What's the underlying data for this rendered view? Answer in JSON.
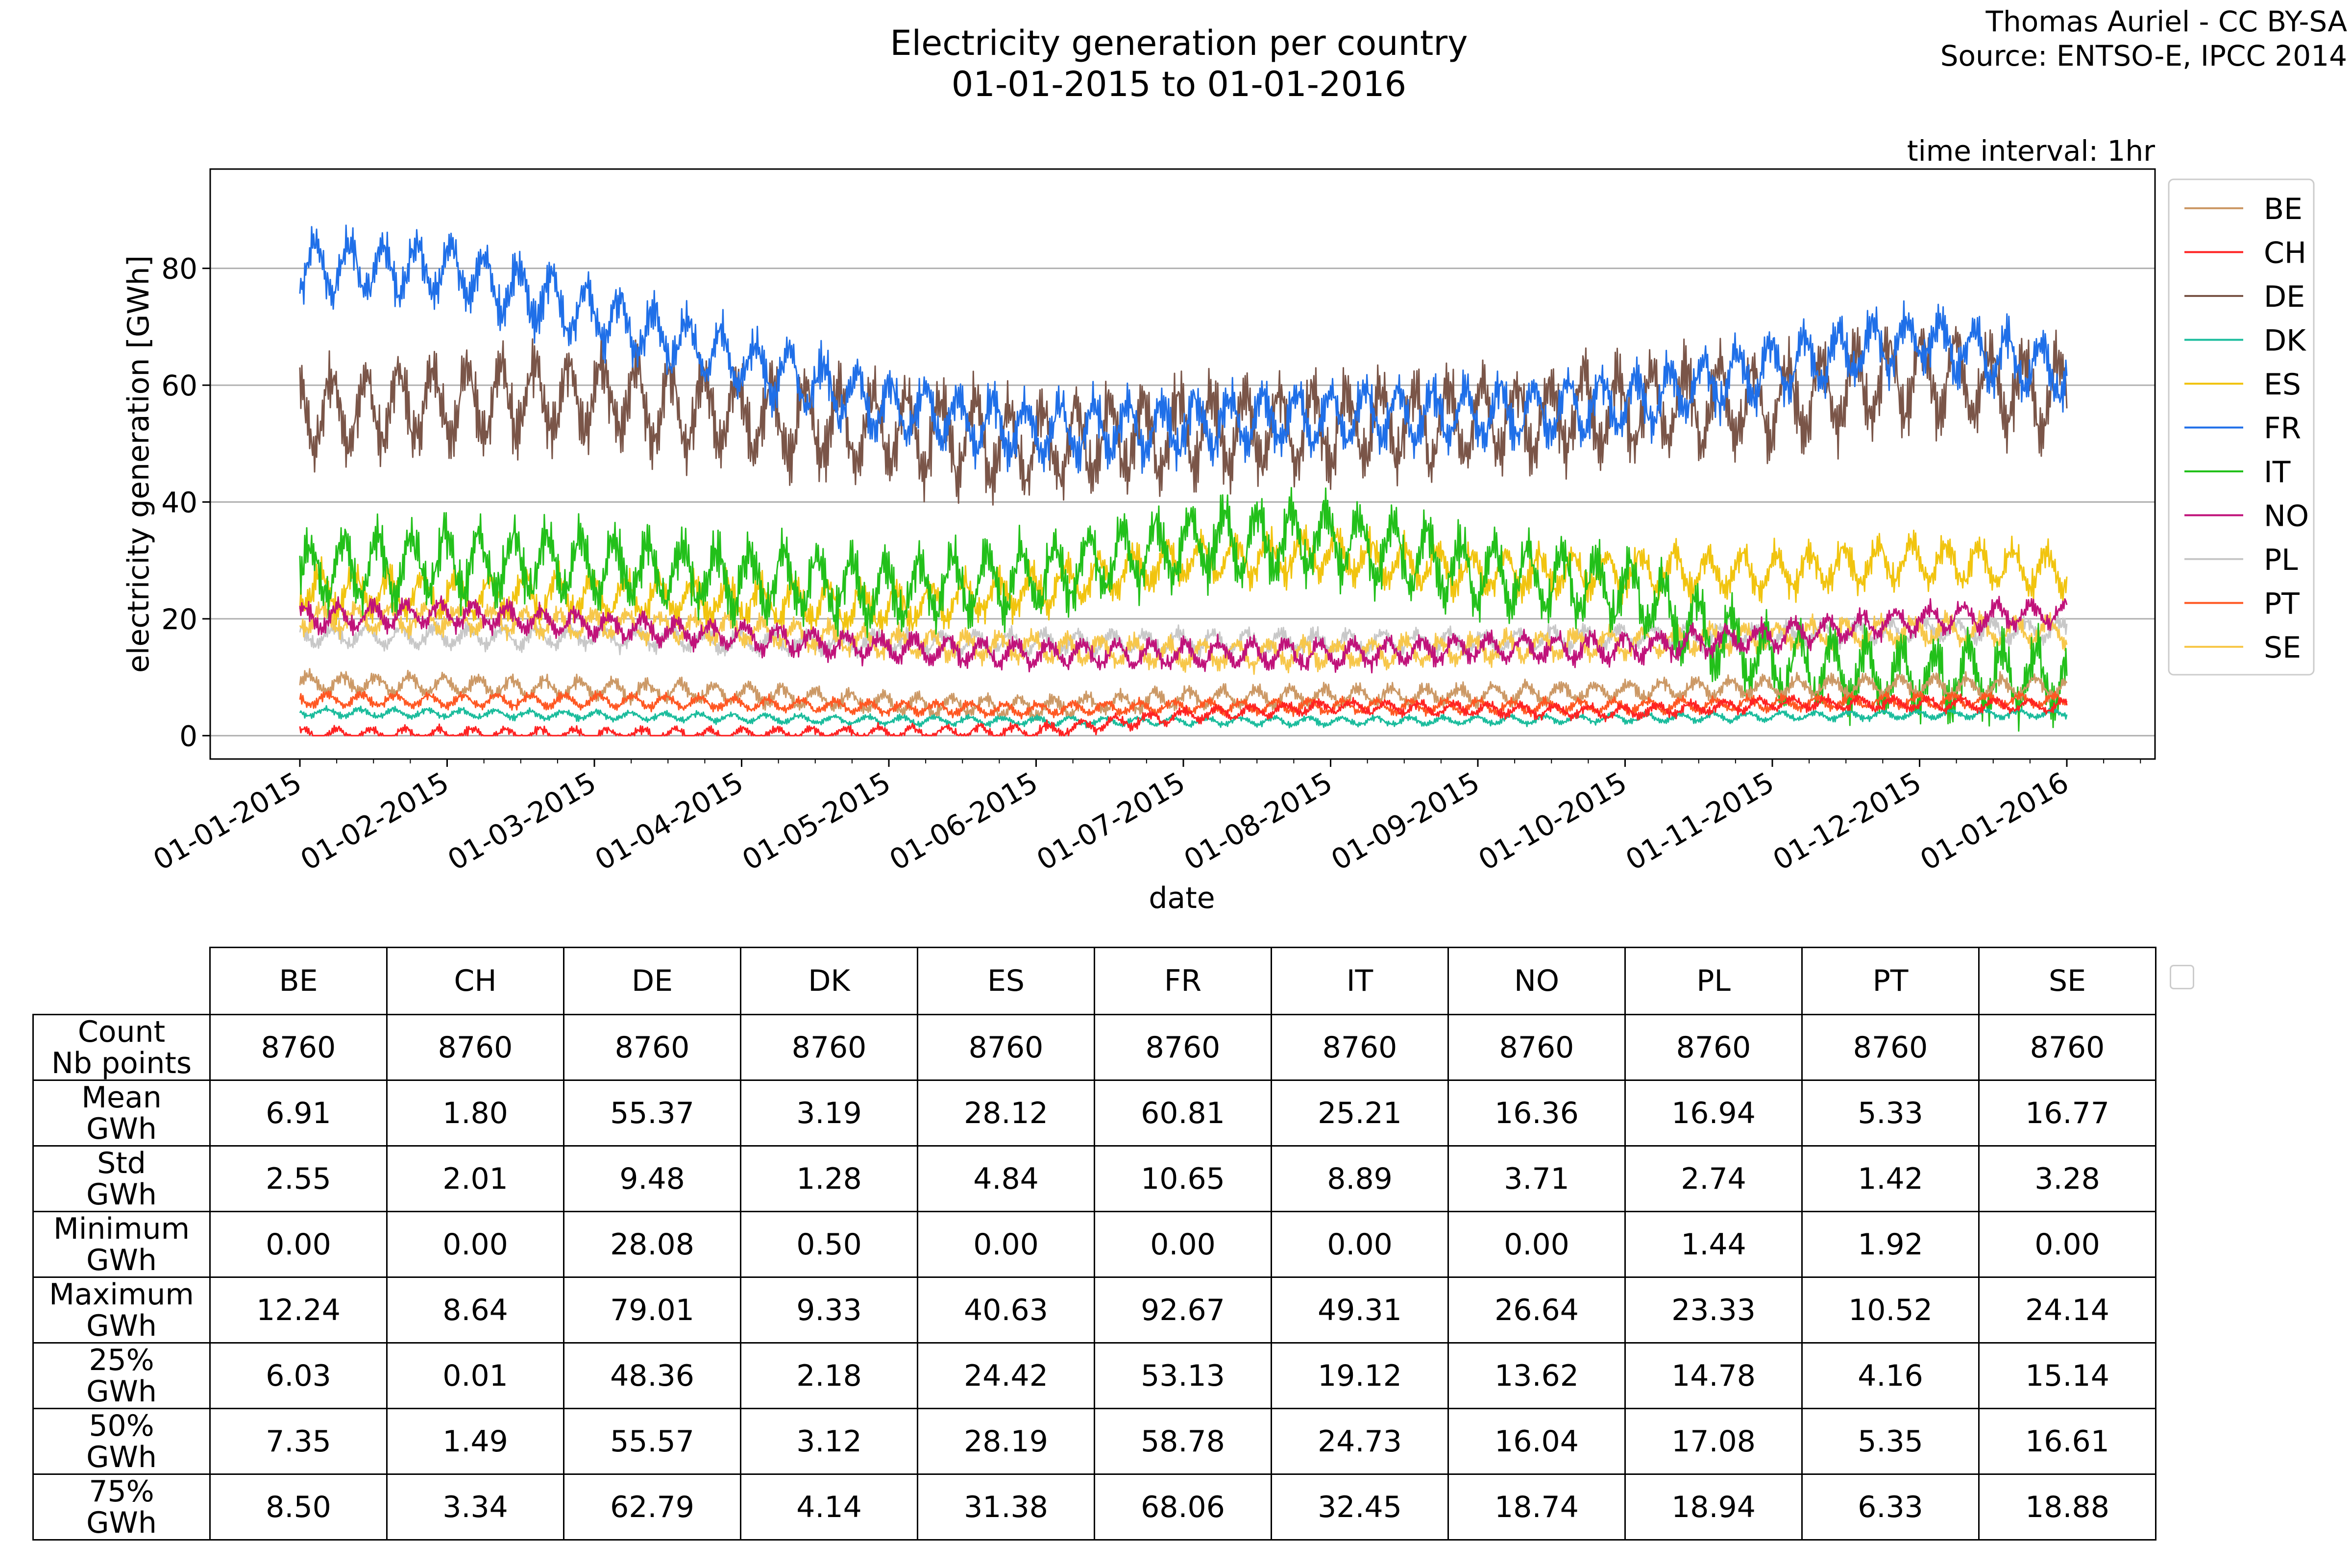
{
  "credit": {
    "line1": "Thomas Auriel - CC BY-SA",
    "line2": "Source: ENTSO-E, IPCC 2014"
  },
  "chart_data": {
    "type": "line",
    "title": "Electricity generation per country",
    "subtitle": "01-01-2015 to 01-01-2016",
    "annotation": "time interval: 1hr",
    "xlabel": "date",
    "ylabel": "electricity generation [GWh]",
    "ylim": [
      -4,
      97
    ],
    "yticks": [
      0,
      20,
      40,
      60,
      80
    ],
    "grid": "horizontal",
    "legend_position": "right",
    "x_range_months": [
      0,
      12
    ],
    "xticks": [
      "01-01-2015",
      "01-02-2015",
      "01-03-2015",
      "01-04-2015",
      "01-05-2015",
      "01-06-2015",
      "01-07-2015",
      "01-08-2015",
      "01-09-2015",
      "01-10-2015",
      "01-11-2015",
      "01-12-2015",
      "01-01-2016"
    ],
    "series": [
      {
        "name": "BE",
        "color": "#cc9966",
        "values": [
          9.0,
          8.6,
          8.0,
          7.2,
          5.5,
          4.8,
          6.4,
          6.8,
          7.0,
          7.6,
          8.4,
          8.6,
          8.2
        ],
        "amplitude": 2.2
      },
      {
        "name": "CH",
        "color": "#ff2222",
        "values": [
          0.2,
          0.2,
          0.2,
          0.2,
          0.5,
          0.7,
          3.5,
          5.0,
          4.5,
          4.0,
          5.5,
          5.5,
          5.0
        ],
        "amplitude": 1.5
      },
      {
        "name": "DE",
        "color": "#7a5548",
        "values": [
          55,
          57,
          58,
          55,
          52,
          50,
          52,
          53,
          54,
          56,
          57,
          62,
          58
        ],
        "amplitude": 10
      },
      {
        "name": "DK",
        "color": "#1abc9c",
        "values": [
          4.0,
          3.8,
          3.5,
          3.0,
          2.6,
          2.5,
          2.5,
          2.5,
          2.6,
          3.0,
          3.3,
          3.6,
          3.8
        ],
        "amplitude": 1.0
      },
      {
        "name": "ES",
        "color": "#f1c40f",
        "values": [
          25,
          24,
          24,
          23,
          22,
          25,
          30,
          31,
          28,
          28,
          28,
          30,
          28
        ],
        "amplitude": 5
      },
      {
        "name": "FR",
        "color": "#1f6fe8",
        "values": [
          80,
          80,
          72,
          64,
          56,
          52,
          53,
          55,
          55,
          57,
          63,
          68,
          62
        ],
        "amplitude": 7
      },
      {
        "name": "IT",
        "color": "#22c01a",
        "values": [
          28,
          30,
          29,
          27,
          25,
          27,
          33,
          34,
          28,
          25,
          12,
          10,
          10
        ],
        "amplitude": 8
      },
      {
        "name": "NO",
        "color": "#c0127a",
        "values": [
          20,
          21,
          19,
          17,
          15,
          14,
          14,
          14,
          15,
          15,
          17,
          20,
          21
        ],
        "amplitude": 3
      },
      {
        "name": "PL",
        "color": "#c8c8c8",
        "values": [
          17,
          17,
          17,
          16,
          16,
          16,
          16,
          16,
          16,
          17,
          17,
          18,
          18
        ],
        "amplitude": 2.5
      },
      {
        "name": "PT",
        "color": "#ff5722",
        "values": [
          6.2,
          6.0,
          6.0,
          5.5,
          4.8,
          4.5,
          5.0,
          5.0,
          5.0,
          5.0,
          5.5,
          6.0,
          6.0
        ],
        "amplitude": 1.5
      },
      {
        "name": "SE",
        "color": "#f7c74a",
        "values": [
          20,
          20,
          19,
          18,
          16,
          15,
          14,
          14,
          15,
          16,
          17,
          18,
          18
        ],
        "amplitude": 3
      }
    ],
    "stats_table": {
      "columns": [
        "BE",
        "CH",
        "DE",
        "DK",
        "ES",
        "FR",
        "IT",
        "NO",
        "PL",
        "PT",
        "SE"
      ],
      "rows": [
        {
          "label": [
            "Count",
            "Nb points"
          ],
          "values": [
            "8760",
            "8760",
            "8760",
            "8760",
            "8760",
            "8760",
            "8760",
            "8760",
            "8760",
            "8760",
            "8760"
          ]
        },
        {
          "label": [
            "Mean",
            "GWh"
          ],
          "values": [
            "6.91",
            "1.80",
            "55.37",
            "3.19",
            "28.12",
            "60.81",
            "25.21",
            "16.36",
            "16.94",
            "5.33",
            "16.77"
          ]
        },
        {
          "label": [
            "Std",
            "GWh"
          ],
          "values": [
            "2.55",
            "2.01",
            "9.48",
            "1.28",
            "4.84",
            "10.65",
            "8.89",
            "3.71",
            "2.74",
            "1.42",
            "3.28"
          ]
        },
        {
          "label": [
            "Minimum",
            "GWh"
          ],
          "values": [
            "0.00",
            "0.00",
            "28.08",
            "0.50",
            "0.00",
            "0.00",
            "0.00",
            "0.00",
            "1.44",
            "1.92",
            "0.00"
          ]
        },
        {
          "label": [
            "Maximum",
            "GWh"
          ],
          "values": [
            "12.24",
            "8.64",
            "79.01",
            "9.33",
            "40.63",
            "92.67",
            "49.31",
            "26.64",
            "23.33",
            "10.52",
            "24.14"
          ]
        },
        {
          "label": [
            "25%",
            "GWh"
          ],
          "values": [
            "6.03",
            "0.01",
            "48.36",
            "2.18",
            "24.42",
            "53.13",
            "19.12",
            "13.62",
            "14.78",
            "4.16",
            "15.14"
          ]
        },
        {
          "label": [
            "50%",
            "GWh"
          ],
          "values": [
            "7.35",
            "1.49",
            "55.57",
            "3.12",
            "28.19",
            "58.78",
            "24.73",
            "16.04",
            "17.08",
            "5.35",
            "16.61"
          ]
        },
        {
          "label": [
            "75%",
            "GWh"
          ],
          "values": [
            "8.50",
            "3.34",
            "62.79",
            "4.14",
            "31.38",
            "68.06",
            "32.45",
            "18.74",
            "18.94",
            "6.33",
            "18.88"
          ]
        }
      ]
    }
  }
}
